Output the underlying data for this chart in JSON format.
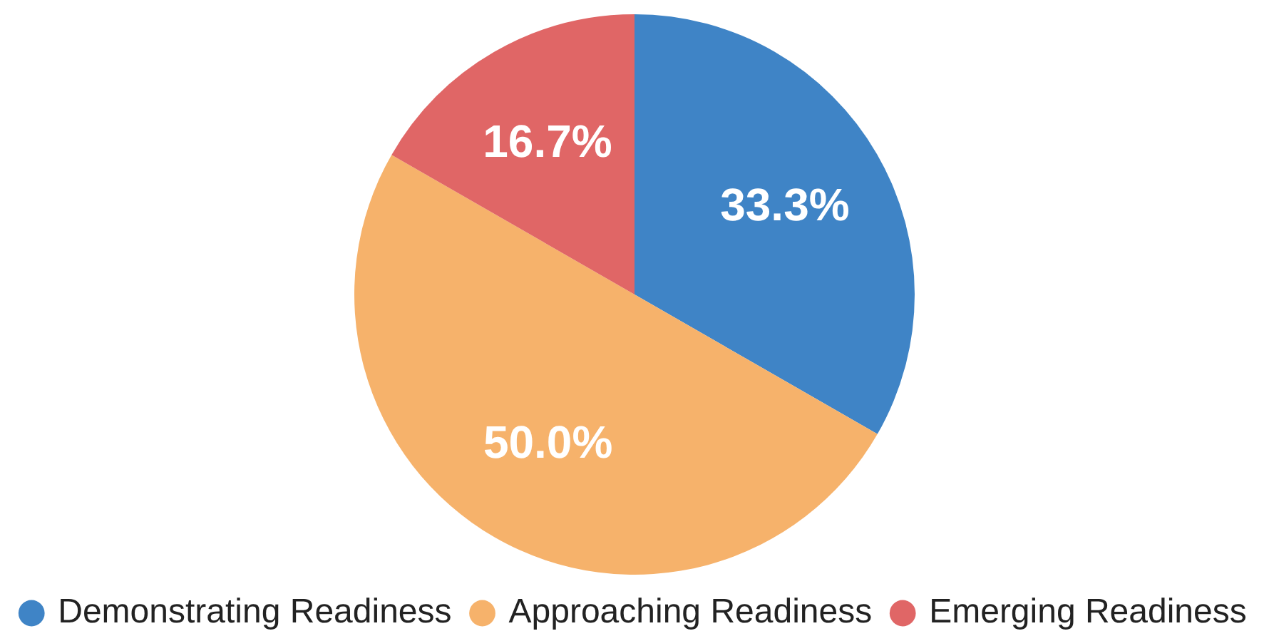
{
  "chart_data": {
    "type": "pie",
    "categories": [
      "Demonstrating Readiness",
      "Approaching Readiness",
      "Emerging Readiness"
    ],
    "values": [
      33.3,
      50.0,
      16.7
    ],
    "colors": [
      "#3f84c6",
      "#f6b26b",
      "#e06666"
    ],
    "value_labels": [
      "33.3%",
      "50.0%",
      "16.7%"
    ],
    "legend": "bottom"
  }
}
